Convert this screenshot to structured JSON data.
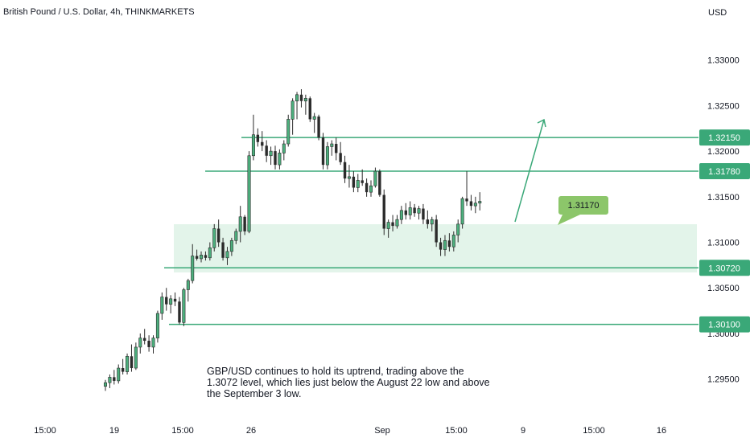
{
  "title": "British Pound / U.S. Dollar, 4h, THINKMARKETS",
  "note": "GBP/USD continues to hold its uptrend, trading above the 1.3072 level, which lies just below the August 22 low and above the September 3 low.",
  "colors": {
    "up": "#4caf7d",
    "down": "#2b2b2b",
    "level": "#3aa878",
    "zone": "#e3f4ea",
    "callout": "#8cc66a"
  },
  "chart_data": {
    "type": "candlestick",
    "title": "British Pound / U.S. Dollar, 4h, THINKMARKETS",
    "ylabel": "USD",
    "y_axis_side": "right",
    "ylim": [
      1.2925,
      1.3335
    ],
    "y_ticks": [
      "1.33000",
      "1.32500",
      "1.32000",
      "1.31500",
      "1.31000",
      "1.30500",
      "1.30000",
      "1.29500"
    ],
    "x_ticks": [
      "15:00",
      "19",
      "15:00",
      "26",
      "Sep",
      "15:00",
      "9",
      "15:00",
      "16"
    ],
    "levels": [
      {
        "label": "1.32150",
        "value": 1.3215
      },
      {
        "label": "1.31780",
        "value": 1.3178
      },
      {
        "label": "1.30720",
        "value": 1.3072
      },
      {
        "label": "1.30100",
        "value": 1.301
      }
    ],
    "support_zone": [
      1.3072,
      1.3117
    ],
    "callout": {
      "label": "1.31170",
      "value": 1.3117
    },
    "projection": {
      "from": 1.3117,
      "to": 1.3215
    },
    "candles": [
      [
        1.2942,
        1.2949,
        1.2937,
        1.2946
      ],
      [
        1.2946,
        1.2955,
        1.294,
        1.2952
      ],
      [
        1.2952,
        1.296,
        1.2944,
        1.2948
      ],
      [
        1.2948,
        1.2966,
        1.2945,
        1.2962
      ],
      [
        1.2962,
        1.2972,
        1.2955,
        1.2958
      ],
      [
        1.2958,
        1.2978,
        1.2955,
        1.2975
      ],
      [
        1.2975,
        1.2988,
        1.2958,
        1.2962
      ],
      [
        1.2962,
        1.299,
        1.296,
        1.2985
      ],
      [
        1.2985,
        1.3,
        1.2978,
        1.2995
      ],
      [
        1.2995,
        1.3005,
        1.2988,
        1.2992
      ],
      [
        1.2992,
        1.2998,
        1.298,
        1.2985
      ],
      [
        1.2985,
        1.2998,
        1.2978,
        1.2995
      ],
      [
        1.2995,
        1.3025,
        1.299,
        1.3022
      ],
      [
        1.3022,
        1.3045,
        1.3015,
        1.304
      ],
      [
        1.304,
        1.305,
        1.3025,
        1.3032
      ],
      [
        1.3032,
        1.3042,
        1.3022,
        1.3038
      ],
      [
        1.3038,
        1.3045,
        1.303,
        1.3035
      ],
      [
        1.3035,
        1.304,
        1.301,
        1.3012
      ],
      [
        1.3012,
        1.305,
        1.3008,
        1.3048
      ],
      [
        1.3048,
        1.306,
        1.3035,
        1.3058
      ],
      [
        1.3058,
        1.3098,
        1.3055,
        1.3085
      ],
      [
        1.3085,
        1.3092,
        1.308,
        1.3082
      ],
      [
        1.3082,
        1.309,
        1.3078,
        1.3086
      ],
      [
        1.3086,
        1.309,
        1.308,
        1.3083
      ],
      [
        1.3083,
        1.31,
        1.308,
        1.3094
      ],
      [
        1.3094,
        1.312,
        1.309,
        1.3115
      ],
      [
        1.3115,
        1.3125,
        1.3095,
        1.31
      ],
      [
        1.31,
        1.3105,
        1.308,
        1.3083
      ],
      [
        1.3083,
        1.3095,
        1.3075,
        1.309
      ],
      [
        1.309,
        1.3105,
        1.3085,
        1.3102
      ],
      [
        1.3102,
        1.3115,
        1.3098,
        1.3112
      ],
      [
        1.3112,
        1.314,
        1.31,
        1.3128
      ],
      [
        1.3128,
        1.313,
        1.3108,
        1.3112
      ],
      [
        1.3112,
        1.32,
        1.311,
        1.3195
      ],
      [
        1.3195,
        1.324,
        1.319,
        1.3218
      ],
      [
        1.3218,
        1.3225,
        1.3205,
        1.321
      ],
      [
        1.321,
        1.3222,
        1.32,
        1.3206
      ],
      [
        1.3206,
        1.3212,
        1.3188,
        1.3195
      ],
      [
        1.3195,
        1.3205,
        1.3185,
        1.32
      ],
      [
        1.32,
        1.3206,
        1.318,
        1.3185
      ],
      [
        1.3185,
        1.3202,
        1.318,
        1.3198
      ],
      [
        1.3198,
        1.3212,
        1.319,
        1.3208
      ],
      [
        1.3208,
        1.324,
        1.3205,
        1.3235
      ],
      [
        1.3235,
        1.3258,
        1.3218,
        1.3255
      ],
      [
        1.3255,
        1.3265,
        1.3235,
        1.3262
      ],
      [
        1.3262,
        1.3268,
        1.3248,
        1.3255
      ],
      [
        1.3255,
        1.3262,
        1.324,
        1.3258
      ],
      [
        1.3258,
        1.326,
        1.3232,
        1.3235
      ],
      [
        1.3235,
        1.3242,
        1.322,
        1.3238
      ],
      [
        1.3238,
        1.324,
        1.3212,
        1.3215
      ],
      [
        1.3215,
        1.322,
        1.318,
        1.3185
      ],
      [
        1.3185,
        1.321,
        1.318,
        1.3205
      ],
      [
        1.3205,
        1.3212,
        1.3195,
        1.3208
      ],
      [
        1.3208,
        1.3215,
        1.319,
        1.3198
      ],
      [
        1.3198,
        1.321,
        1.3185,
        1.3188
      ],
      [
        1.3188,
        1.3195,
        1.3165,
        1.317
      ],
      [
        1.317,
        1.3185,
        1.316,
        1.3172
      ],
      [
        1.3172,
        1.3178,
        1.3155,
        1.316
      ],
      [
        1.316,
        1.3175,
        1.3155,
        1.3168
      ],
      [
        1.3168,
        1.318,
        1.3162,
        1.3165
      ],
      [
        1.3165,
        1.317,
        1.315,
        1.3155
      ],
      [
        1.3155,
        1.3168,
        1.315,
        1.3162
      ],
      [
        1.3162,
        1.3182,
        1.316,
        1.3178
      ],
      [
        1.3178,
        1.318,
        1.315,
        1.3152
      ],
      [
        1.3152,
        1.3158,
        1.3108,
        1.3115
      ],
      [
        1.3115,
        1.3125,
        1.3105,
        1.3122
      ],
      [
        1.3122,
        1.313,
        1.3112,
        1.3118
      ],
      [
        1.3118,
        1.313,
        1.3115,
        1.3125
      ],
      [
        1.3125,
        1.314,
        1.312,
        1.3135
      ],
      [
        1.3135,
        1.3143,
        1.3125,
        1.313
      ],
      [
        1.313,
        1.3145,
        1.3125,
        1.3138
      ],
      [
        1.3138,
        1.3142,
        1.3128,
        1.3132
      ],
      [
        1.3132,
        1.314,
        1.3125,
        1.3137
      ],
      [
        1.3137,
        1.3142,
        1.312,
        1.3125
      ],
      [
        1.3125,
        1.3135,
        1.3115,
        1.312
      ],
      [
        1.312,
        1.3128,
        1.3112,
        1.3125
      ],
      [
        1.3125,
        1.313,
        1.3095,
        1.31
      ],
      [
        1.31,
        1.3105,
        1.3085,
        1.3092
      ],
      [
        1.3092,
        1.3108,
        1.3085,
        1.3102
      ],
      [
        1.3102,
        1.311,
        1.309,
        1.3095
      ],
      [
        1.3095,
        1.3112,
        1.309,
        1.3108
      ],
      [
        1.3108,
        1.3125,
        1.31,
        1.312
      ],
      [
        1.312,
        1.315,
        1.3115,
        1.3148
      ],
      [
        1.3148,
        1.3178,
        1.314,
        1.3145
      ],
      [
        1.3145,
        1.3152,
        1.3135,
        1.314
      ],
      [
        1.314,
        1.315,
        1.3132,
        1.3143
      ],
      [
        1.3143,
        1.3155,
        1.3135,
        1.3145
      ]
    ]
  }
}
